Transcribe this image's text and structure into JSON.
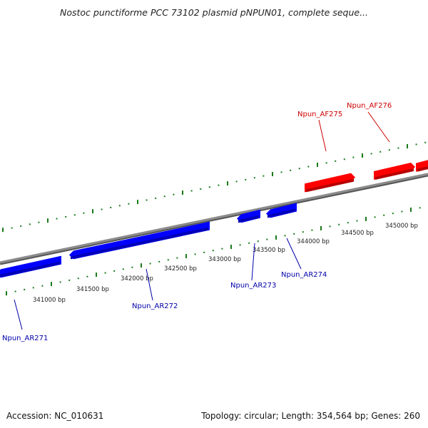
{
  "title": "Nostoc punctiforme PCC 73102 plasmid pNPUN01, complete seque...",
  "footer": {
    "accession": "Accession: NC_010631",
    "summary": "Topology: circular; Length: 354,564 bp; Genes: 260"
  },
  "colors": {
    "forward_gene": "#ff0000",
    "reverse_gene": "#0000ff",
    "tick": "#1a7a1a",
    "backbone": "#888888",
    "forward_label": "#cc0000",
    "reverse_label": "#0000aa"
  },
  "ruler_labels": [
    {
      "bp": 341000,
      "text": "341000 bp"
    },
    {
      "bp": 341500,
      "text": "341500 bp"
    },
    {
      "bp": 342000,
      "text": "342000 bp"
    },
    {
      "bp": 342500,
      "text": "342500 bp"
    },
    {
      "bp": 343000,
      "text": "343000 bp"
    },
    {
      "bp": 343500,
      "text": "343500 bp"
    },
    {
      "bp": 344000,
      "text": "344000 bp"
    },
    {
      "bp": 344500,
      "text": "344500 bp"
    },
    {
      "bp": 345000,
      "text": "345000 bp"
    }
  ],
  "genes": [
    {
      "name": "Npun_AR271",
      "strand": "reverse"
    },
    {
      "name": "Npun_AR272",
      "strand": "reverse"
    },
    {
      "name": "Npun_AR273",
      "strand": "reverse"
    },
    {
      "name": "Npun_AR274",
      "strand": "reverse"
    },
    {
      "name": "Npun_AF275",
      "strand": "forward"
    },
    {
      "name": "Npun_AF276",
      "strand": "forward"
    }
  ]
}
